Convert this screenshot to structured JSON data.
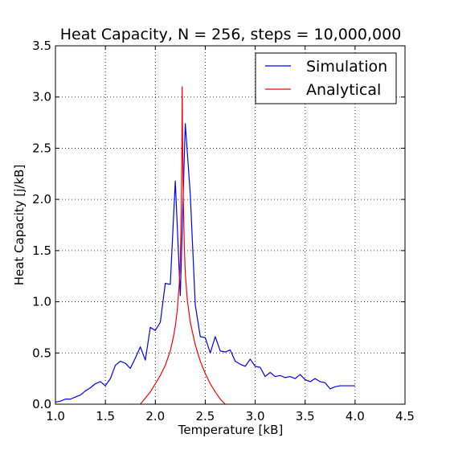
{
  "chart_data": {
    "type": "line",
    "title": "Heat Capacity, N = 256, steps = 10,000,000",
    "xlabel": "Temperature [kB]",
    "ylabel": "Heat Capacity [j/kB]",
    "xlim": [
      1.0,
      4.5
    ],
    "ylim": [
      0.0,
      3.5
    ],
    "xticks": [
      "1.0",
      "1.5",
      "2.0",
      "2.5",
      "3.0",
      "3.5",
      "4.0",
      "4.5"
    ],
    "yticks": [
      "0.0",
      "0.5",
      "1.0",
      "1.5",
      "2.0",
      "2.5",
      "3.0",
      "3.5"
    ],
    "grid": true,
    "legend_position": "top-right",
    "series": [
      {
        "name": "Simulation",
        "color": "#0000ff",
        "x": [
          1.0,
          1.05,
          1.1,
          1.15,
          1.2,
          1.25,
          1.3,
          1.35,
          1.4,
          1.45,
          1.5,
          1.55,
          1.6,
          1.65,
          1.7,
          1.75,
          1.8,
          1.85,
          1.9,
          1.95,
          2.0,
          2.05,
          2.1,
          2.15,
          2.2,
          2.25,
          2.3,
          2.35,
          2.4,
          2.45,
          2.5,
          2.55,
          2.6,
          2.65,
          2.7,
          2.75,
          2.8,
          2.85,
          2.9,
          2.95,
          3.0,
          3.05,
          3.1,
          3.15,
          3.2,
          3.25,
          3.3,
          3.35,
          3.4,
          3.45,
          3.5,
          3.55,
          3.6,
          3.65,
          3.7,
          3.75,
          3.8,
          3.85,
          3.9,
          3.95,
          4.0
        ],
        "y": [
          0.02,
          0.03,
          0.05,
          0.05,
          0.07,
          0.09,
          0.13,
          0.16,
          0.2,
          0.22,
          0.18,
          0.25,
          0.38,
          0.42,
          0.4,
          0.35,
          0.45,
          0.56,
          0.43,
          0.75,
          0.72,
          0.8,
          1.18,
          1.17,
          2.18,
          1.06,
          2.74,
          2.05,
          0.97,
          0.66,
          0.65,
          0.5,
          0.66,
          0.52,
          0.51,
          0.53,
          0.42,
          0.39,
          0.37,
          0.44,
          0.37,
          0.36,
          0.27,
          0.31,
          0.27,
          0.28,
          0.26,
          0.27,
          0.25,
          0.29,
          0.24,
          0.22,
          0.25,
          0.22,
          0.21,
          0.15,
          0.17,
          0.18,
          0.18,
          0.18,
          0.18
        ]
      },
      {
        "name": "Analytical",
        "color": "#ff0000",
        "x": [
          1.85,
          1.9,
          1.95,
          2.0,
          2.05,
          2.1,
          2.15,
          2.18,
          2.2,
          2.22,
          2.24,
          2.25,
          2.26,
          2.265,
          2.269,
          2.273,
          2.28,
          2.29,
          2.3,
          2.32,
          2.35,
          2.4,
          2.45,
          2.5,
          2.55,
          2.6,
          2.65,
          2.7
        ],
        "y": [
          0.0,
          0.06,
          0.12,
          0.2,
          0.28,
          0.38,
          0.52,
          0.65,
          0.76,
          0.92,
          1.18,
          1.4,
          1.9,
          2.35,
          3.1,
          2.6,
          2.0,
          1.55,
          1.28,
          1.02,
          0.8,
          0.58,
          0.42,
          0.3,
          0.2,
          0.12,
          0.05,
          0.0
        ]
      }
    ]
  }
}
